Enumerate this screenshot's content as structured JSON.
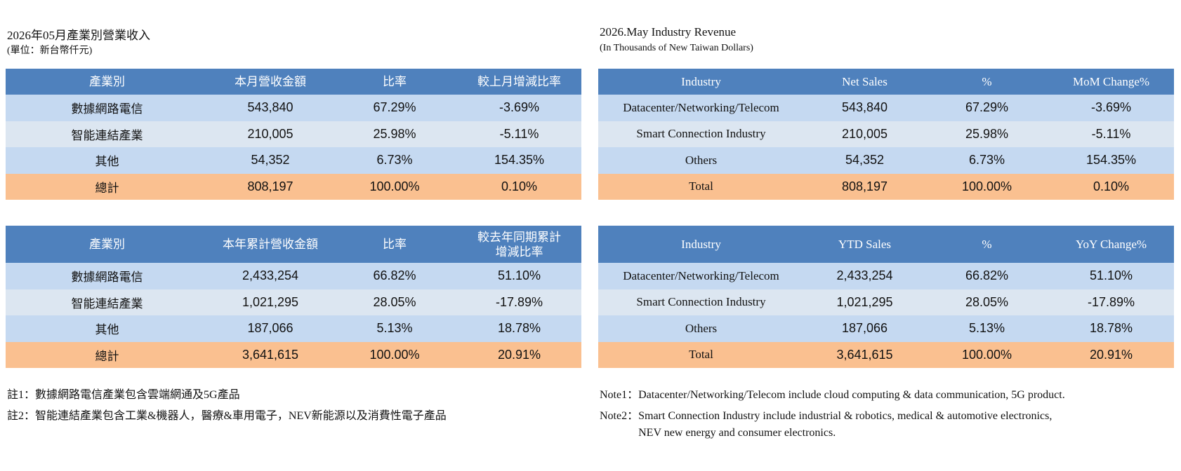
{
  "left": {
    "title": "2026年05月產業別營業收入",
    "subtitle": "(單位：新台幣仟元)",
    "tables": [
      {
        "header": [
          "產業別",
          "本月營收金額",
          "比率",
          "較上月增減比率"
        ],
        "rows": [
          [
            "數據網路電信",
            "543,840",
            "67.29%",
            "-3.69%"
          ],
          [
            "智能連結產業",
            "210,005",
            "25.98%",
            "-5.11%"
          ],
          [
            "其他",
            "54,352",
            "6.73%",
            "154.35%"
          ],
          [
            "總計",
            "808,197",
            "100.00%",
            "0.10%"
          ]
        ]
      },
      {
        "header": [
          "產業別",
          "本年累計營收金額",
          "比率",
          "較去年同期累計\n增減比率"
        ],
        "rows": [
          [
            "數據網路電信",
            "2,433,254",
            "66.82%",
            "51.10%"
          ],
          [
            "智能連結產業",
            "1,021,295",
            "28.05%",
            "-17.89%"
          ],
          [
            "其他",
            "187,066",
            "5.13%",
            "18.78%"
          ],
          [
            "總計",
            "3,641,615",
            "100.00%",
            "20.91%"
          ]
        ]
      }
    ],
    "notes": [
      {
        "label": "註1：",
        "lines": [
          "數據網路電信產業包含雲端網通及5G產品"
        ]
      },
      {
        "label": "註2：",
        "lines": [
          "智能連結產業包含工業&機器人，醫療&車用電子，NEV新能源以及消費性電子產品"
        ]
      }
    ]
  },
  "right": {
    "title": "2026.May  Industry Revenue",
    "subtitle": "(In Thousands of New Taiwan Dollars)",
    "tables": [
      {
        "header": [
          "Industry",
          "Net Sales",
          "%",
          "MoM Change%"
        ],
        "rows": [
          [
            "Datacenter/Networking/Telecom",
            "543,840",
            "67.29%",
            "-3.69%"
          ],
          [
            "Smart Connection Industry",
            "210,005",
            "25.98%",
            "-5.11%"
          ],
          [
            "Others",
            "54,352",
            "6.73%",
            "154.35%"
          ],
          [
            "Total",
            "808,197",
            "100.00%",
            "0.10%"
          ]
        ]
      },
      {
        "header": [
          "Industry",
          "YTD Sales",
          "%",
          "YoY Change%"
        ],
        "rows": [
          [
            "Datacenter/Networking/Telecom",
            "2,433,254",
            "66.82%",
            "51.10%"
          ],
          [
            "Smart Connection Industry",
            "1,021,295",
            "28.05%",
            "-17.89%"
          ],
          [
            "Others",
            "187,066",
            "5.13%",
            "18.78%"
          ],
          [
            "Total",
            "3,641,615",
            "100.00%",
            "20.91%"
          ]
        ]
      }
    ],
    "notes": [
      {
        "label": "Note1：",
        "lines": [
          "Datacenter/Networking/Telecom include cloud computing & data communication, 5G product."
        ]
      },
      {
        "label": "Note2：",
        "lines": [
          "Smart Connection Industry include industrial & robotics, medical & automotive electronics,",
          "NEV new energy and consumer electronics."
        ]
      }
    ]
  }
}
